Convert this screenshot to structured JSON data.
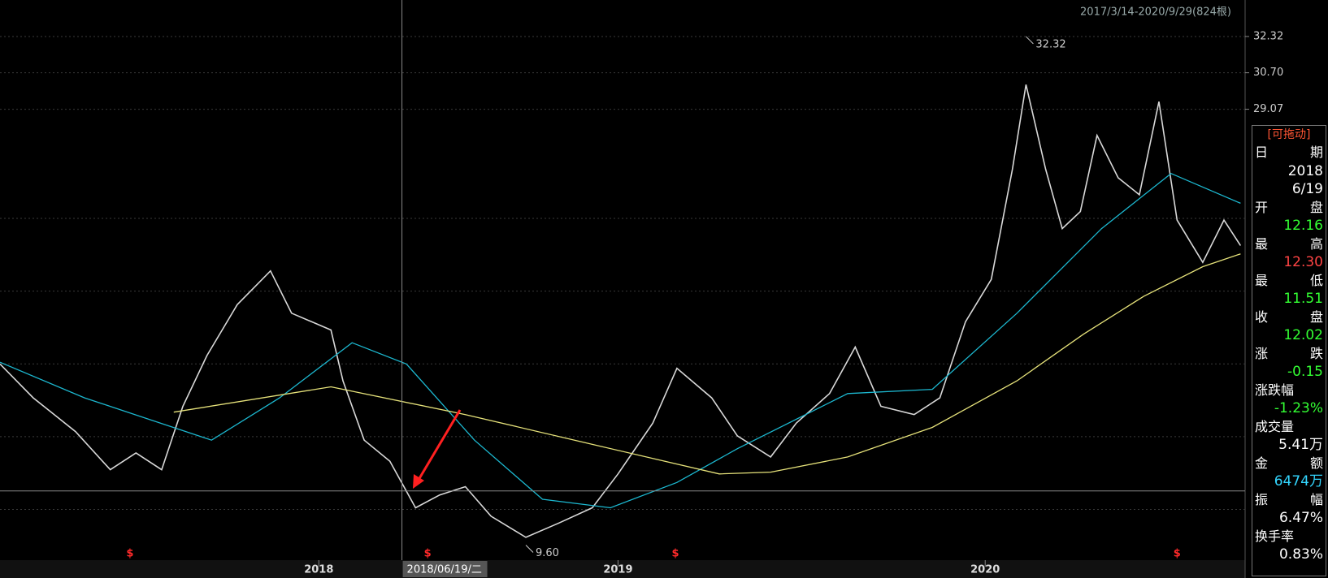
{
  "chart_data": {
    "type": "line",
    "range_label": "2017/3/14-2020/9/29(824根)",
    "xlim": [
      0,
      824
    ],
    "xticks": [
      {
        "value": 211,
        "label": "2018"
      },
      {
        "value": 409,
        "label": "2019"
      },
      {
        "value": 652,
        "label": "2020"
      }
    ],
    "ylim": [
      8.93,
      33.95
    ],
    "yticks": [
      32.32,
      {
        "value": 30.7,
        "label": "30.70"
      },
      29.07
    ],
    "grid": true,
    "series": [
      {
        "color": "#d8d8d8",
        "x": [
          0,
          22,
          50,
          73,
          90,
          107,
          121,
          137,
          157,
          179,
          193,
          219,
          227,
          241,
          258,
          275,
          291,
          308,
          325,
          348,
          370,
          392,
          409,
          432,
          448,
          471,
          488,
          510,
          527,
          549,
          566,
          583,
          605,
          622,
          639,
          656,
          670,
          679,
          692,
          703,
          715,
          726,
          740,
          754,
          767,
          779,
          796,
          810,
          821
        ],
        "values": [
          17.69,
          16.18,
          14.67,
          12.97,
          13.72,
          12.97,
          15.8,
          18.07,
          20.34,
          21.85,
          19.96,
          19.21,
          16.94,
          14.29,
          13.35,
          11.27,
          11.84,
          12.21,
          10.89,
          9.95,
          10.59,
          11.27,
          12.78,
          15.05,
          17.5,
          16.18,
          14.48,
          13.54,
          15.05,
          16.37,
          18.45,
          15.8,
          15.43,
          16.18,
          19.58,
          21.47,
          26.39,
          30.17,
          26.39,
          23.74,
          24.5,
          27.9,
          26.01,
          25.25,
          29.41,
          24.12,
          22.23,
          24.12,
          22.98
        ]
      },
      {
        "color": "#1cb8d0",
        "x": [
          0,
          56,
          140,
          185,
          233,
          269,
          314,
          359,
          404,
          448,
          488,
          561,
          617,
          673,
          729,
          775,
          821
        ],
        "values": [
          17.77,
          16.18,
          14.29,
          16.18,
          18.64,
          17.69,
          14.29,
          11.65,
          11.27,
          12.4,
          13.91,
          16.37,
          16.56,
          19.96,
          23.74,
          26.2,
          24.87
        ]
      },
      {
        "color": "#e6e27a",
        "x": [
          115,
          219,
          308,
          392,
          476,
          510,
          561,
          617,
          673,
          717,
          757,
          796,
          821
        ],
        "values": [
          15.54,
          16.67,
          15.43,
          14.1,
          12.78,
          12.86,
          13.54,
          14.86,
          16.94,
          19.02,
          20.72,
          22.04,
          22.61
        ]
      }
    ],
    "annotations": [
      {
        "x": 679,
        "value": 32.32
      },
      {
        "x": 348,
        "value": 9.6,
        "label": "9.60"
      }
    ],
    "crosshair": {
      "x": 266,
      "value": 12.02,
      "label": "2018/06/19/二"
    },
    "signals": {
      "x": [
        86,
        283,
        447,
        779
      ],
      "label": "$"
    }
  },
  "info_panel": {
    "title": "[可拖动]",
    "items": [
      {
        "label": "日期",
        "values": [
          "2018",
          "6/19"
        ],
        "color": "#ffffff"
      },
      {
        "label": "开盘",
        "values": [
          "12.16"
        ],
        "color": "#33ff33"
      },
      {
        "label": "最高",
        "values": [
          "12.30"
        ],
        "color": "#ff4444"
      },
      {
        "label": "最低",
        "values": [
          "11.51"
        ],
        "color": "#33ff33"
      },
      {
        "label": "收盘",
        "values": [
          "12.02"
        ],
        "color": "#33ff33"
      },
      {
        "label": "涨跌",
        "values": [
          "-0.15"
        ],
        "color": "#33ff33"
      },
      {
        "label": "涨跌幅",
        "values": [
          "-1.23%"
        ],
        "color": "#33ff33"
      },
      {
        "label": "成交量",
        "values": [
          "5.41万"
        ],
        "color": "#ffffff"
      },
      {
        "label": "金额",
        "values": [
          "6474万"
        ],
        "color": "#33d6ff"
      },
      {
        "label": "振幅",
        "values": [
          "6.47%"
        ],
        "color": "#ffffff"
      },
      {
        "label": "换手率",
        "values": [
          "0.83%"
        ],
        "color": "#ffffff"
      }
    ]
  }
}
